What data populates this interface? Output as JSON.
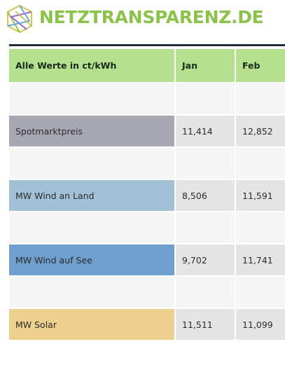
{
  "brand": {
    "name": "NETZTRANSPARENZ.DE",
    "logo_icon": "hexagon-network-logo",
    "color": "#8bc34a"
  },
  "table": {
    "headers": [
      "Alle Werte in ct/kWh",
      "Jan",
      "Feb"
    ],
    "header_color": "#b5e08f",
    "rows": [
      {
        "label": "Spotmarktpreis",
        "jan": "11,414",
        "feb": "12,852",
        "color": "#a8a8b4"
      },
      {
        "label": "MW Wind an Land",
        "jan": "8,506",
        "feb": "11,591",
        "color": "#a2c1d6"
      },
      {
        "label": "MW Wind auf See",
        "jan": "9,702",
        "feb": "11,741",
        "color": "#6e9fcf"
      },
      {
        "label": "MW Solar",
        "jan": "11,511",
        "feb": "11,099",
        "color": "#edd08e"
      }
    ]
  }
}
